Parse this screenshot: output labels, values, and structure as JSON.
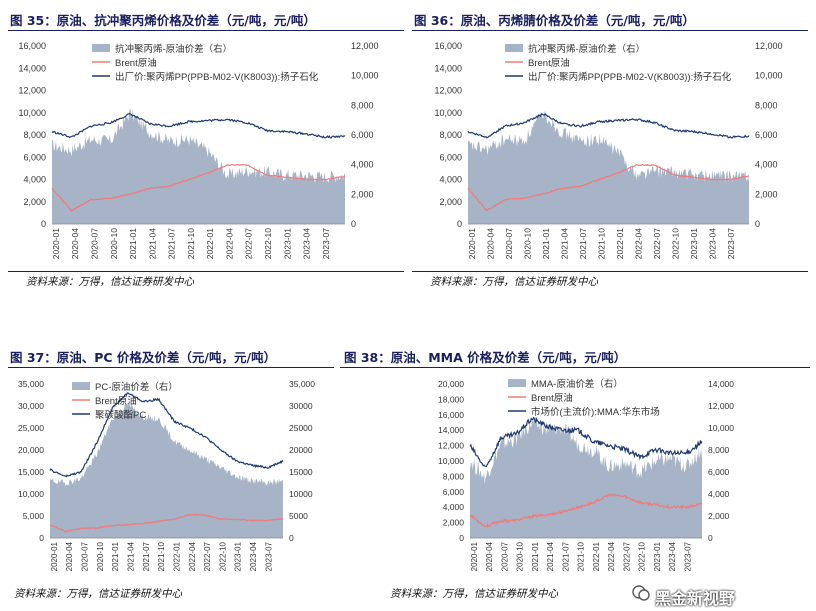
{
  "charts": [
    {
      "title": "图 35：原油、抗冲聚丙烯价格及价差（元/吨，元/吨）",
      "source": "资料来源：万得，信达证券研发中心",
      "legend": [
        "抗冲聚丙烯-原油价差（右）",
        "Brent原油",
        "出厂价:聚丙烯PP(PPB-M02-V(K8003)):扬子石化"
      ],
      "left_ticks": [
        "0",
        "2,000",
        "4,000",
        "6,000",
        "8,000",
        "10,000",
        "12,000",
        "14,000",
        "16,000"
      ],
      "right_ticks": [
        "0",
        "2,000",
        "4,000",
        "6,000",
        "8,000",
        "10,000",
        "12,000"
      ],
      "x_ticks": [
        "2020-01",
        "2020-04",
        "2020-07",
        "2020-10",
        "2021-01",
        "2021-04",
        "2021-07",
        "2021-10",
        "2022-01",
        "2022-04",
        "2022-07",
        "2022-10",
        "2023-01",
        "2023-04",
        "2023-07"
      ]
    },
    {
      "title": "图 36：原油、丙烯腈价格及价差（元/吨，元/吨）",
      "source": "资料来源：万得，信达证券研发中心",
      "legend": [
        "抗冲聚丙烯-原油价差（右）",
        "Brent原油",
        "出厂价:聚丙烯PP(PPB-M02-V(K8003)):扬子石化"
      ],
      "left_ticks": [
        "0",
        "2,000",
        "4,000",
        "6,000",
        "8,000",
        "10,000",
        "12,000",
        "14,000",
        "16,000"
      ],
      "right_ticks": [
        "0",
        "2,000",
        "4,000",
        "6,000",
        "8,000",
        "10,000",
        "12,000"
      ],
      "x_ticks": [
        "2020-01",
        "2020-04",
        "2020-07",
        "2020-10",
        "2021-01",
        "2021-04",
        "2021-07",
        "2021-10",
        "2022-01",
        "2022-04",
        "2022-07",
        "2022-10",
        "2023-01",
        "2023-04",
        "2023-07"
      ]
    },
    {
      "title": "图 37：原油、PC 价格及价差（元/吨，元/吨）",
      "source": "资料来源：万得，信达证券研发中心",
      "legend": [
        "PC-原油价差（右）",
        "Brent原油",
        "聚碳酸酯PC"
      ],
      "left_ticks": [
        "0",
        "5,000",
        "10,000",
        "15,000",
        "20,000",
        "25,000",
        "30,000",
        "35,000"
      ],
      "right_ticks": [
        "0",
        "5000",
        "10000",
        "15000",
        "20000",
        "25000",
        "30000",
        "35,000"
      ],
      "x_ticks": [
        "2020-01",
        "2020-04",
        "2020-07",
        "2020-10",
        "2021-01",
        "2021-04",
        "2021-07",
        "2021-10",
        "2022-01",
        "2022-04",
        "2022-07",
        "2022-10",
        "2023-01",
        "2023-04",
        "2023-07"
      ]
    },
    {
      "title": "图 38：原油、MMA 价格及价差（元/吨，元/吨）",
      "source": "资料来源：万得，信达证券研发中心",
      "legend": [
        "MMA-原油价差（右）",
        "Brent原油",
        "市场价(主流价):MMA:华东市场"
      ],
      "left_ticks": [
        "0",
        "2,000",
        "4,000",
        "6,000",
        "8,000",
        "10,000",
        "12,000",
        "14,000",
        "16,000",
        "18,000",
        "20,000"
      ],
      "right_ticks": [
        "0",
        "2,000",
        "4,000",
        "6,000",
        "8,000",
        "10,000",
        "12,000",
        "14,000"
      ],
      "x_ticks": [
        "2020-01",
        "2020-04",
        "2020-07",
        "2020-10",
        "2021-01",
        "2021-04",
        "2021-07",
        "2021-10",
        "2022-01",
        "2022-04",
        "2022-07",
        "2022-10",
        "2023-01",
        "2023-04",
        "2023-07"
      ]
    }
  ],
  "watermark": "黑金新视野",
  "colors": {
    "title": "#1a1f5e",
    "spread_fill": "#a7b3c6",
    "brent": "#f27a7a",
    "price_line": "#1f3a6e"
  },
  "chart_data": [
    {
      "type": "area",
      "x": [
        "2020-01",
        "2020-04",
        "2020-07",
        "2020-10",
        "2021-01",
        "2021-04",
        "2021-07",
        "2021-10",
        "2022-01",
        "2022-04",
        "2022-07",
        "2022-10",
        "2023-01",
        "2023-04",
        "2023-07",
        "2023-08"
      ],
      "ylim": [
        0,
        16000
      ],
      "y2lim": [
        0,
        12000
      ],
      "series": [
        {
          "name": "抗冲聚丙烯-原油价差（右）",
          "axis": "right",
          "kind": "area",
          "values": [
            5300,
            5000,
            5700,
            5600,
            7500,
            6200,
            5600,
            5700,
            4900,
            3300,
            3600,
            3500,
            3300,
            3300,
            3200,
            3300
          ]
        },
        {
          "name": "Brent原油",
          "axis": "left",
          "kind": "line",
          "values": [
            3200,
            1200,
            2200,
            2300,
            2700,
            3200,
            3400,
            4000,
            4600,
            5300,
            5300,
            4400,
            4200,
            4000,
            4000,
            4300
          ]
        },
        {
          "name": "出厂价:聚丙烯PP(PPB-M02-V(K8003)):扬子石化",
          "axis": "left",
          "kind": "line",
          "values": [
            8300,
            7800,
            8800,
            9100,
            9900,
            9000,
            8800,
            9200,
            9300,
            9400,
            9100,
            8400,
            8300,
            8100,
            7800,
            7900
          ]
        }
      ]
    },
    {
      "type": "area",
      "x": [
        "2020-01",
        "2020-04",
        "2020-07",
        "2020-10",
        "2021-01",
        "2021-04",
        "2021-07",
        "2021-10",
        "2022-01",
        "2022-04",
        "2022-07",
        "2022-10",
        "2023-01",
        "2023-04",
        "2023-07",
        "2023-08"
      ],
      "ylim": [
        0,
        16000
      ],
      "y2lim": [
        0,
        12000
      ],
      "series": [
        {
          "name": "抗冲聚丙烯-原油价差（右）",
          "axis": "right",
          "kind": "area",
          "values": [
            5300,
            5000,
            5700,
            5600,
            7500,
            6200,
            5600,
            5700,
            4900,
            3300,
            3600,
            3500,
            3300,
            3300,
            3200,
            3300
          ]
        },
        {
          "name": "Brent原油",
          "axis": "left",
          "kind": "line",
          "values": [
            3200,
            1200,
            2200,
            2300,
            2700,
            3200,
            3400,
            4000,
            4600,
            5300,
            5300,
            4400,
            4200,
            4000,
            4000,
            4300
          ]
        },
        {
          "name": "出厂价:聚丙烯PP(PPB-M02-V(K8003)):扬子石化",
          "axis": "left",
          "kind": "line",
          "values": [
            8300,
            7800,
            8800,
            9100,
            9900,
            9000,
            8800,
            9200,
            9300,
            9400,
            9100,
            8400,
            8300,
            8100,
            7800,
            7900
          ]
        }
      ]
    },
    {
      "type": "area",
      "x": [
        "2020-01",
        "2020-04",
        "2020-07",
        "2020-10",
        "2021-01",
        "2021-04",
        "2021-07",
        "2021-10",
        "2022-01",
        "2022-04",
        "2022-07",
        "2022-10",
        "2023-01",
        "2023-04",
        "2023-07",
        "2023-08"
      ],
      "ylim": [
        0,
        35000
      ],
      "y2lim": [
        0,
        35000
      ],
      "series": [
        {
          "name": "PC-原油价差（右）",
          "axis": "right",
          "kind": "area",
          "values": [
            13000,
            12500,
            13500,
            19000,
            27000,
            30500,
            27500,
            27000,
            22000,
            20000,
            18000,
            16000,
            14000,
            13000,
            12500,
            13000
          ]
        },
        {
          "name": "Brent原油",
          "axis": "left",
          "kind": "line",
          "values": [
            3000,
            1500,
            2200,
            2300,
            2800,
            3000,
            3300,
            3800,
            4300,
            5300,
            5200,
            4300,
            4200,
            4000,
            4000,
            4400
          ]
        },
        {
          "name": "聚碳酸酯PC",
          "axis": "left",
          "kind": "line",
          "values": [
            15500,
            14000,
            15000,
            21500,
            29500,
            33000,
            31000,
            31500,
            26500,
            25000,
            23000,
            20000,
            17500,
            16500,
            16000,
            17500
          ]
        }
      ]
    },
    {
      "type": "area",
      "x": [
        "2020-01",
        "2020-04",
        "2020-07",
        "2020-10",
        "2021-01",
        "2021-04",
        "2021-07",
        "2021-10",
        "2022-01",
        "2022-04",
        "2022-07",
        "2022-10",
        "2023-01",
        "2023-04",
        "2023-07",
        "2023-08"
      ],
      "ylim": [
        0,
        20000
      ],
      "y2lim": [
        0,
        14000
      ],
      "series": [
        {
          "name": "MMA-原油价差（右）",
          "axis": "right",
          "kind": "area",
          "values": [
            7000,
            5500,
            8500,
            9000,
            10500,
            9800,
            10000,
            8500,
            8000,
            6500,
            6800,
            6000,
            7000,
            7200,
            6500,
            8000
          ]
        },
        {
          "name": "Brent原油",
          "axis": "left",
          "kind": "line",
          "values": [
            3000,
            1500,
            2200,
            2300,
            2800,
            3000,
            3400,
            4000,
            4600,
            5600,
            5400,
            4600,
            4300,
            4000,
            4000,
            4400
          ]
        },
        {
          "name": "市场价(主流价):MMA:华东市场",
          "axis": "left",
          "kind": "line",
          "values": [
            12000,
            9000,
            13000,
            13500,
            15500,
            14500,
            14000,
            14000,
            12500,
            12000,
            11500,
            10500,
            11500,
            11000,
            11000,
            12500
          ]
        }
      ]
    }
  ]
}
